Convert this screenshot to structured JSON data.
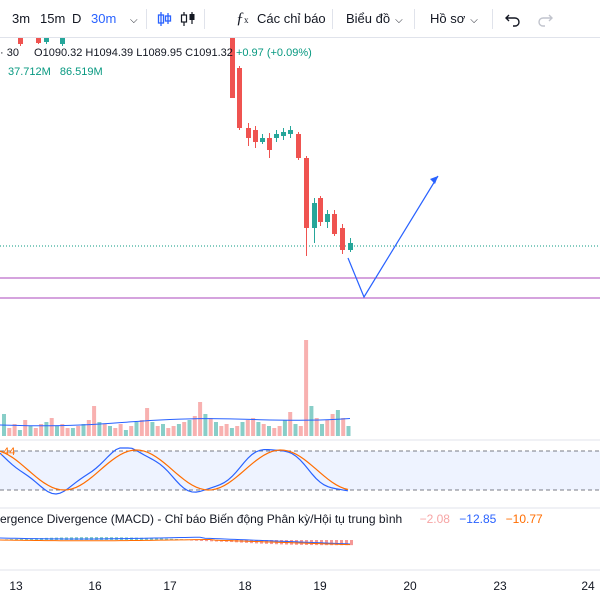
{
  "toolbar": {
    "intervals": [
      "3m",
      "15m",
      "D",
      "30m"
    ],
    "active_interval": "30m",
    "indicators_label": "Các chỉ báo",
    "chart_label": "Biểu đồ",
    "profile_label": "Hồ sơ",
    "icons": [
      "bar-style-icon",
      "candle-style-icon",
      "fx-indicator-icon",
      "undo-icon",
      "redo-icon"
    ]
  },
  "legend": {
    "interval_fragment": "· 30",
    "open": "O1090.32",
    "high": "H1094.39",
    "low": "L1089.95",
    "close": "C1091.32",
    "change": "+0.97 (+0.09%)",
    "volume_a": "37.712M",
    "volume_b": "86.519M"
  },
  "rsi": {
    "value_fragment": ".44"
  },
  "macd": {
    "title": "ergence Divergence (MACD) - Chỉ báo Biến động Phân kỳ/Hội tụ trung bình",
    "v1": "−2.08",
    "v2": "−12.85",
    "v3": "−10.77"
  },
  "xaxis": {
    "labels": [
      "13",
      "16",
      "17",
      "18",
      "19",
      "20",
      "23",
      "24"
    ]
  },
  "colors": {
    "up": "#26a69a",
    "down": "#ef5350",
    "accent": "#2962ff",
    "signal": "#ff6d00",
    "level_line": "#ab47bc"
  }
}
